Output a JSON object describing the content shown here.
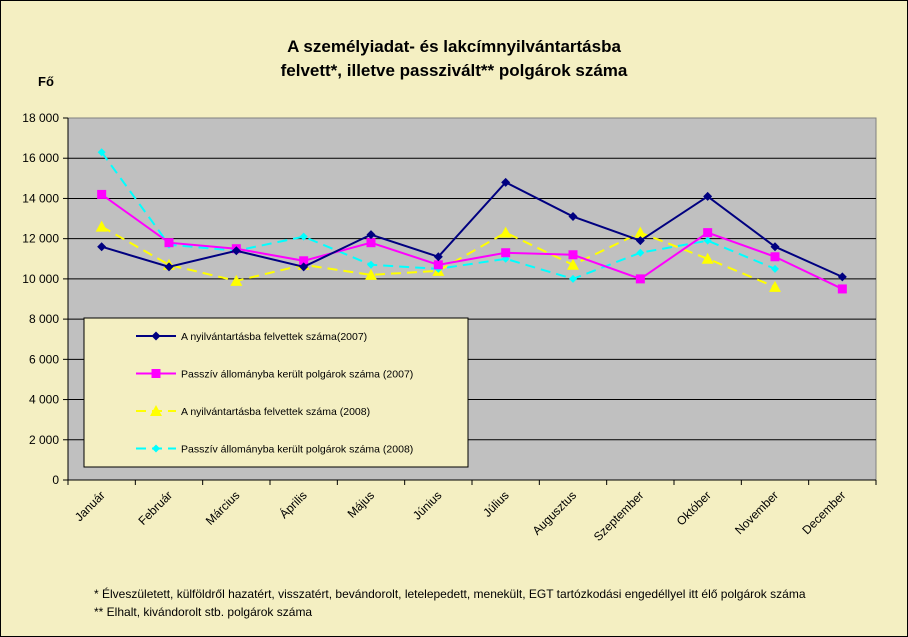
{
  "chart_data": {
    "type": "line",
    "title_line1": "A személyiadat- és lakcímnyilvántartásba",
    "title_line2": "felvett*, illetve passzivált** polgárok száma",
    "ylabel": "Fő",
    "ylim": [
      0,
      18000
    ],
    "yticks": [
      "0",
      "2 000",
      "4 000",
      "6 000",
      "8 000",
      "10 000",
      "12 000",
      "14 000",
      "16 000",
      "18 000"
    ],
    "categories": [
      "Január",
      "Február",
      "Március",
      "Április",
      "Május",
      "Június",
      "Július",
      "Augusztus",
      "Szeptember",
      "Október",
      "November",
      "December"
    ],
    "grid": true,
    "legend_position": "lower-left inside plot",
    "series": [
      {
        "name": "A nyilvántartásba felvettek száma(2007)",
        "color": "#000080",
        "marker": "diamond",
        "dash": "solid",
        "values": [
          11600,
          10600,
          11400,
          10600,
          12200,
          11100,
          14800,
          13100,
          11900,
          14100,
          11600,
          10100
        ]
      },
      {
        "name": "Passzív állományba került polgárok száma (2007)",
        "color": "#ff00ff",
        "marker": "square",
        "dash": "solid",
        "values": [
          14200,
          11800,
          11500,
          10900,
          11800,
          10700,
          11300,
          11200,
          10000,
          12300,
          11100,
          9500
        ]
      },
      {
        "name": "A nyilvántartásba felvettek száma (2008)",
        "color": "#ffff00",
        "marker": "triangle",
        "dash": "dashed",
        "values": [
          12600,
          10700,
          9900,
          10700,
          10200,
          10400,
          12300,
          10700,
          12300,
          11000,
          9600,
          null
        ]
      },
      {
        "name": "Passzív állományba került polgárok száma (2008)",
        "color": "#00ffff",
        "marker": "circle",
        "dash": "dashed",
        "values": [
          16300,
          11700,
          11400,
          12100,
          10700,
          10500,
          11000,
          10000,
          11300,
          11900,
          10500,
          null
        ]
      }
    ]
  },
  "footnotes": [
    "* Élveszületett, külföldről hazatért, visszatért, bevándorolt, letelepedett, menekült, EGT tartózkodási engedéllyel itt élő  polgárok száma",
    "** Elhalt, kivándorolt stb. polgárok száma"
  ]
}
